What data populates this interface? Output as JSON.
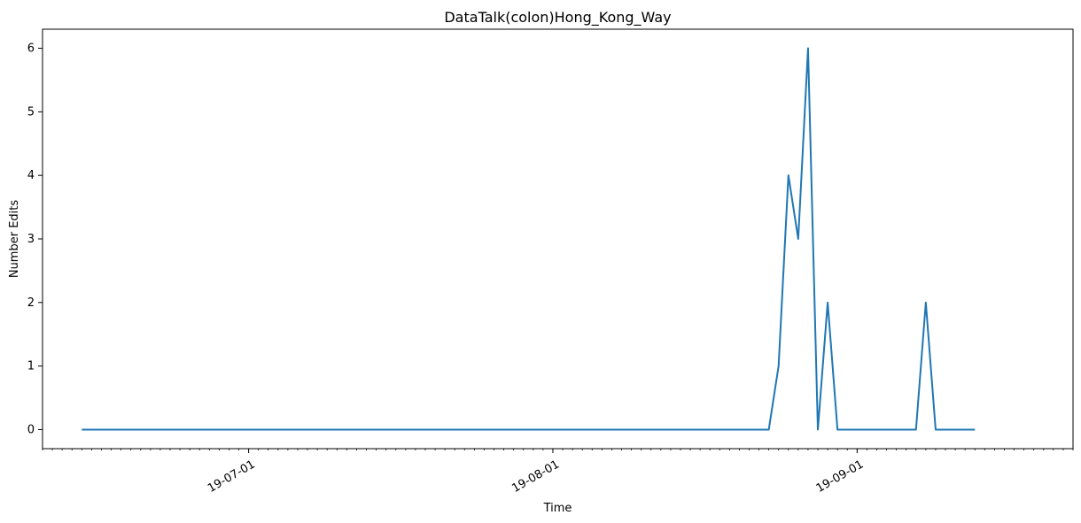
{
  "chart_data": {
    "type": "line",
    "title": "DataTalk(colon)Hong_Kong_Way",
    "xlabel": "Time",
    "ylabel": "Number Edits",
    "x_axis": {
      "type": "date",
      "range": [
        "2019-06-10",
        "2019-09-23"
      ],
      "major_ticks": [
        "2019-07-01",
        "2019-08-01",
        "2019-09-01"
      ],
      "major_tick_labels": [
        "19-07-01",
        "19-08-01",
        "19-09-01"
      ],
      "minor_ticks": "daily"
    },
    "y_axis": {
      "range": [
        -0.3,
        6.3
      ],
      "ticks": [
        0,
        1,
        2,
        3,
        4,
        5,
        6
      ]
    },
    "grid": false,
    "legend": "none",
    "series": [
      {
        "color": "#1f77b4",
        "points": [
          {
            "x": "2019-06-14",
            "y": 0
          },
          {
            "x": "2019-08-23",
            "y": 0
          },
          {
            "x": "2019-08-24",
            "y": 1
          },
          {
            "x": "2019-08-25",
            "y": 4
          },
          {
            "x": "2019-08-26",
            "y": 3
          },
          {
            "x": "2019-08-27",
            "y": 6
          },
          {
            "x": "2019-08-28",
            "y": 0
          },
          {
            "x": "2019-08-29",
            "y": 2
          },
          {
            "x": "2019-08-30",
            "y": 0
          },
          {
            "x": "2019-09-07",
            "y": 0
          },
          {
            "x": "2019-09-08",
            "y": 2
          },
          {
            "x": "2019-09-09",
            "y": 0
          },
          {
            "x": "2019-09-13",
            "y": 0
          }
        ]
      }
    ]
  }
}
